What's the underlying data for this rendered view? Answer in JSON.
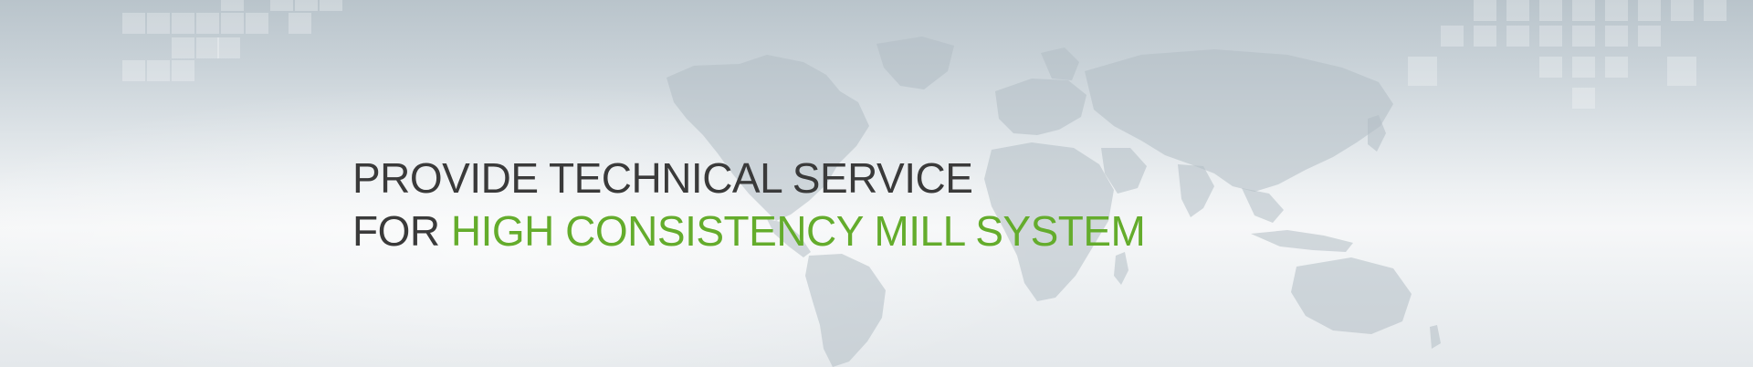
{
  "banner": {
    "headline": {
      "line1": "PROVIDE TECHNICAL SERVICE",
      "line2_prefix": "FOR ",
      "line2_highlight": "HIGH CONSISTENCY MILL SYSTEM"
    },
    "decorations": {
      "background": "world-map",
      "tiles": "square-tiles"
    }
  },
  "colors": {
    "text": "#3a3a3a",
    "accent": "#64ac2c",
    "background": "#dde3e7"
  }
}
